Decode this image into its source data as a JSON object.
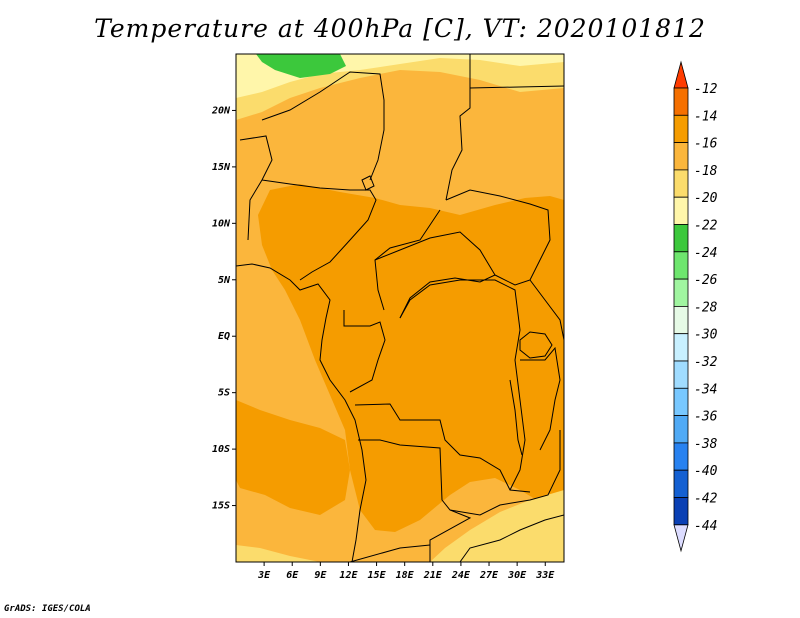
{
  "title": "Temperature at 400hPa [C], VT: 2020101812",
  "credit": "GrADS: IGES/COLA",
  "map": {
    "lon_range": [
      0,
      35
    ],
    "lat_range": [
      -20,
      25
    ],
    "lon_ticks": [
      {
        "value": 3,
        "label": "3E"
      },
      {
        "value": 6,
        "label": "6E"
      },
      {
        "value": 9,
        "label": "9E"
      },
      {
        "value": 12,
        "label": "12E"
      },
      {
        "value": 15,
        "label": "15E"
      },
      {
        "value": 18,
        "label": "18E"
      },
      {
        "value": 21,
        "label": "21E"
      },
      {
        "value": 24,
        "label": "24E"
      },
      {
        "value": 27,
        "label": "27E"
      },
      {
        "value": 30,
        "label": "30E"
      },
      {
        "value": 33,
        "label": "33E"
      }
    ],
    "lat_ticks": [
      {
        "value": 20,
        "label": "20N"
      },
      {
        "value": 15,
        "label": "15N"
      },
      {
        "value": 10,
        "label": "10N"
      },
      {
        "value": 5,
        "label": "5N"
      },
      {
        "value": 0,
        "label": "EQ"
      },
      {
        "value": -5,
        "label": "5S"
      },
      {
        "value": -10,
        "label": "10S"
      },
      {
        "value": -15,
        "label": "15S"
      }
    ]
  },
  "legend": {
    "labels": [
      "-12",
      "-14",
      "-16",
      "-18",
      "-20",
      "-22",
      "-24",
      "-26",
      "-28",
      "-30",
      "-32",
      "-34",
      "-36",
      "-38",
      "-40",
      "-42",
      "-44"
    ],
    "colors": [
      "#ff3c00",
      "#f57000",
      "#f59c00",
      "#fbb63c",
      "#fbdc6c",
      "#fff6aa",
      "#3cc83c",
      "#6ee66e",
      "#a0f5a0",
      "#e6fae6",
      "#c8f0ff",
      "#a0dcff",
      "#78c8ff",
      "#50aaf5",
      "#2882f0",
      "#1460d2",
      "#0a40b4",
      "#000a78",
      "#dcdcff"
    ]
  }
}
